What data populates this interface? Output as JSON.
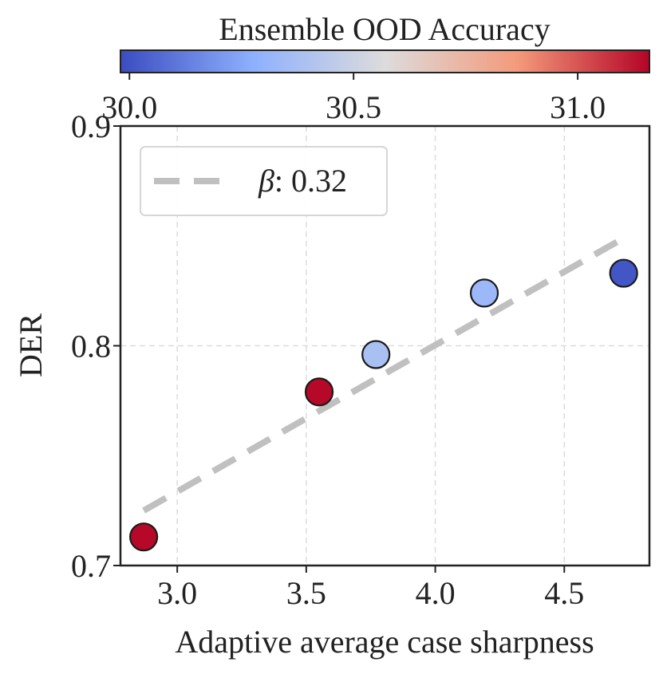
{
  "chart_data": {
    "type": "scatter",
    "xlabel": "Adaptive average case sharpness",
    "ylabel": "DER",
    "xlim": [
      2.78,
      4.83
    ],
    "ylim": [
      0.7,
      0.9
    ],
    "x_ticks": [
      3.0,
      3.5,
      4.0,
      4.5
    ],
    "x_tick_labels": [
      "3.0",
      "3.5",
      "4.0",
      "4.5"
    ],
    "y_ticks": [
      0.7,
      0.8,
      0.9
    ],
    "y_tick_labels": [
      "0.7",
      "0.8",
      "0.9"
    ],
    "grid": true,
    "points": [
      {
        "x": 2.87,
        "y": 0.713,
        "color_value": 31.15
      },
      {
        "x": 3.55,
        "y": 0.779,
        "color_value": 31.15
      },
      {
        "x": 3.77,
        "y": 0.796,
        "color_value": 30.38
      },
      {
        "x": 4.19,
        "y": 0.824,
        "color_value": 30.33
      },
      {
        "x": 4.73,
        "y": 0.833,
        "color_value": 30.01
      }
    ],
    "trend_line": {
      "label_symbol": "β",
      "label_value": ": 0.32",
      "x": [
        2.87,
        4.73
      ],
      "y": [
        0.725,
        0.849
      ],
      "color": "#c0c0c0",
      "style": "dashed"
    },
    "legend_placement": "top-left",
    "colorbar": {
      "title": "Ensemble OOD Accuracy",
      "range": [
        29.98,
        31.16
      ],
      "ticks": [
        30.0,
        30.5,
        31.0
      ],
      "tick_labels": [
        "30.0",
        "30.5",
        "31.0"
      ],
      "colormap": "coolwarm",
      "colors": [
        "#3b4cc0",
        "#8db0fe",
        "#dddcdc",
        "#f49a7b",
        "#b40426"
      ]
    }
  }
}
